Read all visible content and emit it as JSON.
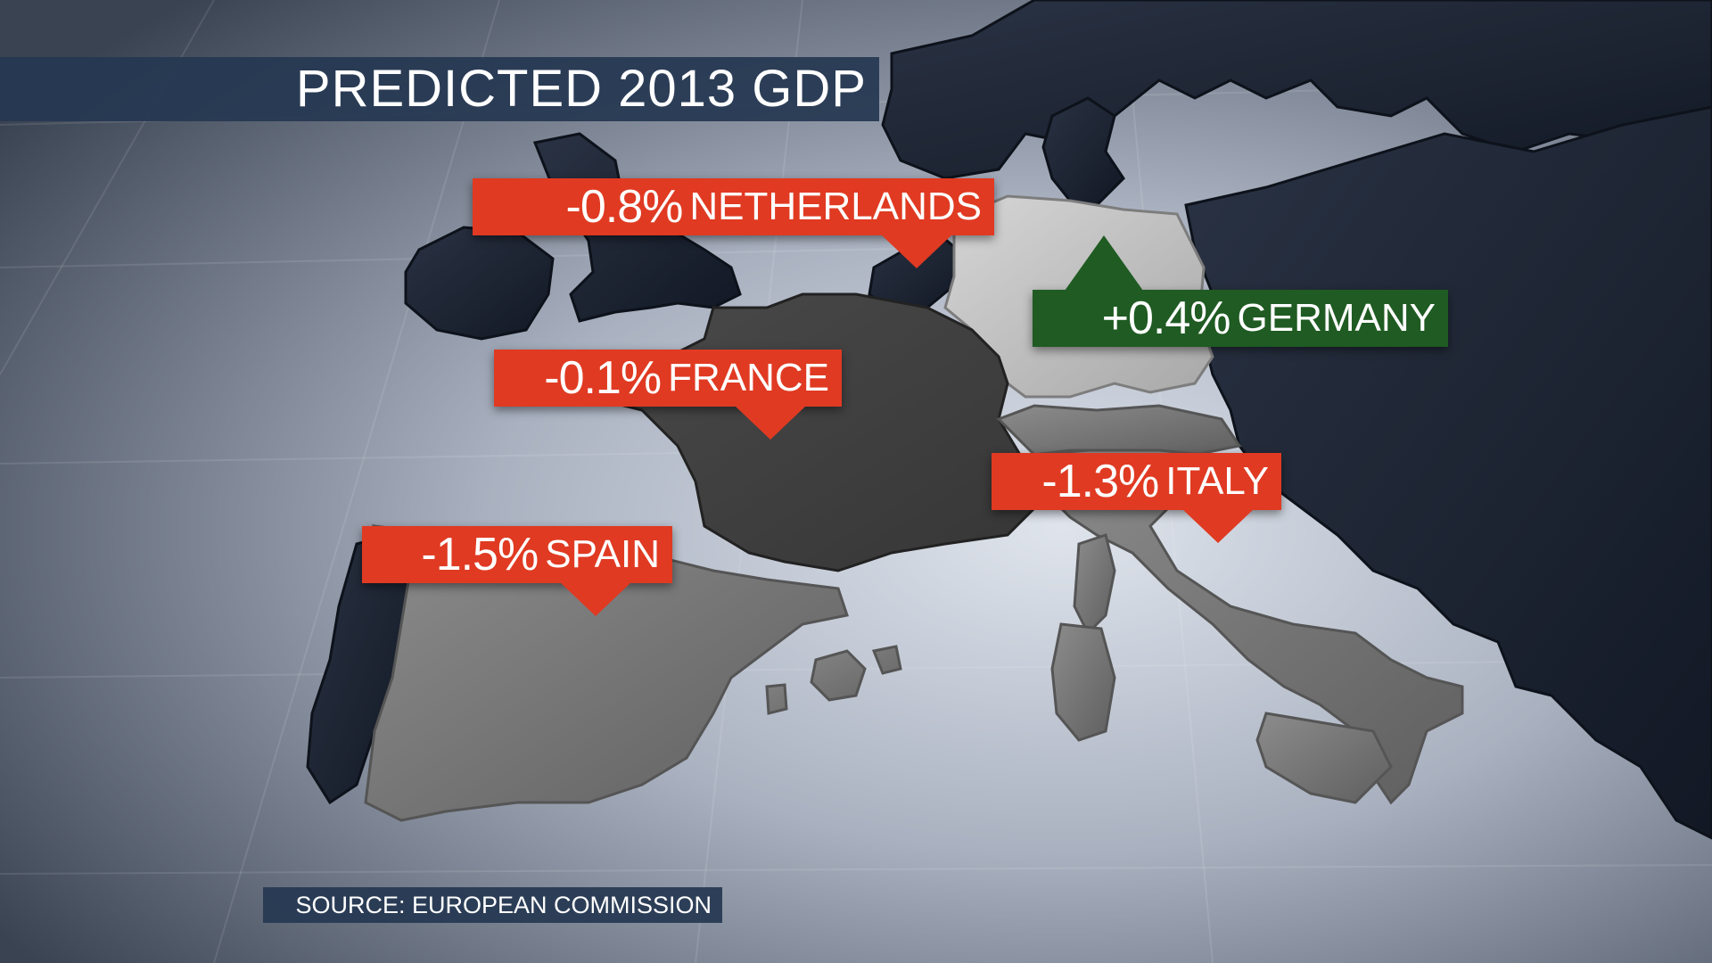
{
  "title": "PREDICTED 2013 GDP",
  "source": "SOURCE: EUROPEAN COMMISSION",
  "colors": {
    "negative": "#e03a22",
    "positive": "#1f5b22",
    "bar": "#263852",
    "highlight_country": "#bdbdbd",
    "land_dark": "#1f2736"
  },
  "countries": [
    {
      "country": "NETHERLANDS",
      "value": "-0.8%",
      "trend": "down"
    },
    {
      "country": "GERMANY",
      "value": "+0.4%",
      "trend": "up"
    },
    {
      "country": "FRANCE",
      "value": "-0.1%",
      "trend": "down"
    },
    {
      "country": "ITALY",
      "value": "-1.3%",
      "trend": "down"
    },
    {
      "country": "SPAIN",
      "value": "-1.5%",
      "trend": "down"
    }
  ]
}
